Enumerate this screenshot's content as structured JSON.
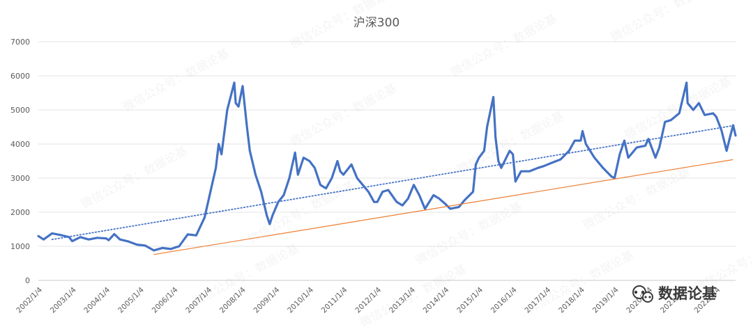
{
  "chart_data": {
    "type": "line",
    "title": "沪深300",
    "xlabel": "",
    "ylabel": "",
    "ylim": [
      0,
      7000
    ],
    "yticks": [
      0,
      1000,
      2000,
      3000,
      4000,
      5000,
      6000,
      7000
    ],
    "x_range": [
      "2002/1/4",
      "2022/7/31"
    ],
    "x_tick_labels": [
      "2002/1/4",
      "2003/1/4",
      "2004/1/4",
      "2005/1/4",
      "2006/1/4",
      "2007/1/4",
      "2008/1/4",
      "2009/1/4",
      "2010/1/4",
      "2011/1/4",
      "2012/1/4",
      "2013/1/4",
      "2014/1/4",
      "2015/1/4",
      "2016/1/4",
      "2017/1/4",
      "2018/1/4",
      "2019/1/4",
      "2020/1/4",
      "2021/1/4",
      "2022/1/4"
    ],
    "grid": "horizontal",
    "legend": "none",
    "series": [
      {
        "color": "#4472C4",
        "points": [
          [
            "2002/1/4",
            1300
          ],
          [
            "2002/3/1",
            1200
          ],
          [
            "2002/6/1",
            1380
          ],
          [
            "2002/9/1",
            1330
          ],
          [
            "2002/12/1",
            1270
          ],
          [
            "2003/1/4",
            1150
          ],
          [
            "2003/4/1",
            1270
          ],
          [
            "2003/7/1",
            1200
          ],
          [
            "2003/10/1",
            1250
          ],
          [
            "2004/1/4",
            1230
          ],
          [
            "2004/2/1",
            1180
          ],
          [
            "2004/4/1",
            1360
          ],
          [
            "2004/6/1",
            1200
          ],
          [
            "2004/9/1",
            1140
          ],
          [
            "2004/12/1",
            1050
          ],
          [
            "2005/3/1",
            1020
          ],
          [
            "2005/6/1",
            880
          ],
          [
            "2005/9/1",
            950
          ],
          [
            "2005/12/1",
            920
          ],
          [
            "2006/3/1",
            1000
          ],
          [
            "2006/6/1",
            1350
          ],
          [
            "2006/9/1",
            1320
          ],
          [
            "2006/12/1",
            1850
          ],
          [
            "2007/2/1",
            2600
          ],
          [
            "2007/4/1",
            3300
          ],
          [
            "2007/5/1",
            4000
          ],
          [
            "2007/6/1",
            3700
          ],
          [
            "2007/8/1",
            5000
          ],
          [
            "2007/10/16",
            5800
          ],
          [
            "2007/11/1",
            5200
          ],
          [
            "2007/12/1",
            5100
          ],
          [
            "2008/1/14",
            5700
          ],
          [
            "2008/3/1",
            4500
          ],
          [
            "2008/4/1",
            3800
          ],
          [
            "2008/6/1",
            3100
          ],
          [
            "2008/8/1",
            2600
          ],
          [
            "2008/10/1",
            1900
          ],
          [
            "2008/11/1",
            1650
          ],
          [
            "2008/12/1",
            1900
          ],
          [
            "2009/2/1",
            2300
          ],
          [
            "2009/4/1",
            2500
          ],
          [
            "2009/6/1",
            3000
          ],
          [
            "2009/8/1",
            3750
          ],
          [
            "2009/9/1",
            3100
          ],
          [
            "2009/11/1",
            3600
          ],
          [
            "2010/1/4",
            3500
          ],
          [
            "2010/3/1",
            3300
          ],
          [
            "2010/5/1",
            2800
          ],
          [
            "2010/7/1",
            2700
          ],
          [
            "2010/9/1",
            3000
          ],
          [
            "2010/11/1",
            3500
          ],
          [
            "2010/12/1",
            3200
          ],
          [
            "2011/1/4",
            3100
          ],
          [
            "2011/4/1",
            3400
          ],
          [
            "2011/6/1",
            3000
          ],
          [
            "2011/8/1",
            2800
          ],
          [
            "2011/10/1",
            2600
          ],
          [
            "2011/12/1",
            2300
          ],
          [
            "2012/1/4",
            2300
          ],
          [
            "2012/3/1",
            2600
          ],
          [
            "2012/5/1",
            2650
          ],
          [
            "2012/8/1",
            2300
          ],
          [
            "2012/10/1",
            2200
          ],
          [
            "2012/12/1",
            2400
          ],
          [
            "2013/2/1",
            2800
          ],
          [
            "2013/4/1",
            2500
          ],
          [
            "2013/6/1",
            2100
          ],
          [
            "2013/9/1",
            2500
          ],
          [
            "2013/11/1",
            2400
          ],
          [
            "2014/1/4",
            2250
          ],
          [
            "2014/3/1",
            2100
          ],
          [
            "2014/6/1",
            2150
          ],
          [
            "2014/8/1",
            2350
          ],
          [
            "2014/11/1",
            2600
          ],
          [
            "2014/12/1",
            3400
          ],
          [
            "2015/1/4",
            3600
          ],
          [
            "2015/3/1",
            3800
          ],
          [
            "2015/4/1",
            4500
          ],
          [
            "2015/6/8",
            5380
          ],
          [
            "2015/7/1",
            4200
          ],
          [
            "2015/8/1",
            3500
          ],
          [
            "2015/9/1",
            3300
          ],
          [
            "2015/12/1",
            3800
          ],
          [
            "2016/1/4",
            3700
          ],
          [
            "2016/2/1",
            2900
          ],
          [
            "2016/4/1",
            3200
          ],
          [
            "2016/7/1",
            3200
          ],
          [
            "2016/10/1",
            3300
          ],
          [
            "2016/12/1",
            3350
          ],
          [
            "2017/3/1",
            3450
          ],
          [
            "2017/6/1",
            3550
          ],
          [
            "2017/9/1",
            3800
          ],
          [
            "2017/11/1",
            4100
          ],
          [
            "2018/1/4",
            4100
          ],
          [
            "2018/1/24",
            4380
          ],
          [
            "2018/3/1",
            4000
          ],
          [
            "2018/6/1",
            3600
          ],
          [
            "2018/9/1",
            3300
          ],
          [
            "2018/12/1",
            3050
          ],
          [
            "2019/1/4",
            3000
          ],
          [
            "2019/3/1",
            3700
          ],
          [
            "2019/4/20",
            4100
          ],
          [
            "2019/6/1",
            3600
          ],
          [
            "2019/9/1",
            3900
          ],
          [
            "2019/12/1",
            3950
          ],
          [
            "2020/1/4",
            4150
          ],
          [
            "2020/3/20",
            3600
          ],
          [
            "2020/5/1",
            3900
          ],
          [
            "2020/7/1",
            4650
          ],
          [
            "2020/9/1",
            4700
          ],
          [
            "2020/12/1",
            4900
          ],
          [
            "2021/2/18",
            5800
          ],
          [
            "2021/3/1",
            5200
          ],
          [
            "2021/5/1",
            5000
          ],
          [
            "2021/7/1",
            5200
          ],
          [
            "2021/9/1",
            4850
          ],
          [
            "2021/12/1",
            4900
          ],
          [
            "2022/1/4",
            4800
          ],
          [
            "2022/3/1",
            4400
          ],
          [
            "2022/4/25",
            3800
          ],
          [
            "2022/6/1",
            4200
          ],
          [
            "2022/7/5",
            4550
          ],
          [
            "2022/7/31",
            4250
          ]
        ]
      },
      {
        "color": "#4472C4",
        "dash": "dotted",
        "points": [
          [
            "2002/6/1",
            1200
          ],
          [
            "2022/7/31",
            4550
          ]
        ]
      },
      {
        "color": "#ED7D31",
        "points": [
          [
            "2005/6/1",
            760
          ],
          [
            "2022/6/30",
            3540
          ]
        ]
      }
    ]
  },
  "watermark": {
    "text": "微信公众号：数据论基"
  },
  "logo": {
    "text": "数据论基",
    "icon": "wechat-official-account-icon"
  }
}
